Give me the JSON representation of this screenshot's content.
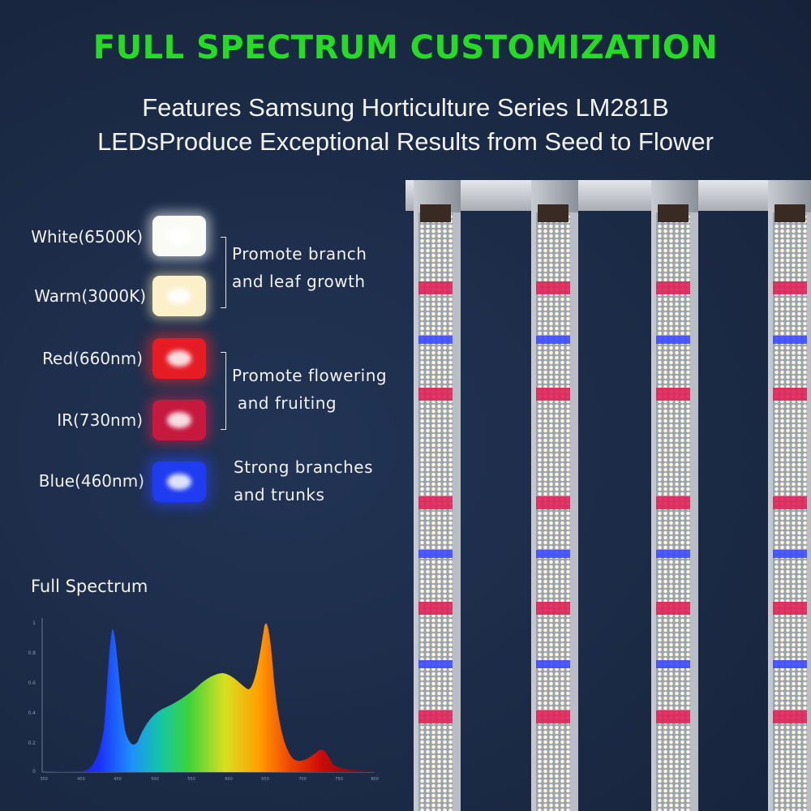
{
  "header": {
    "title": "FULL SPECTRUM CUSTOMIZATION",
    "subtitle_line1": "Features Samsung Horticulture Series LM281B",
    "subtitle_line2": "LEDsProduce Exceptional Results from Seed to Flower"
  },
  "led_types": [
    {
      "label": "White(6500K)",
      "color": "#fbfbf6"
    },
    {
      "label": "Warm(3000K)",
      "color": "#fbf0c9"
    },
    {
      "label": "Red(660nm)",
      "color": "#e61c25"
    },
    {
      "label": "IR(730nm)",
      "color": "#c7183e"
    },
    {
      "label": "Blue(460nm)",
      "color": "#1f3cf0"
    }
  ],
  "effects": [
    {
      "line1": "Promote branch",
      "line2": "and leaf growth"
    },
    {
      "line1": "Promote flowering",
      "line2": " and fruiting"
    },
    {
      "line1": "Strong branches",
      "line2": "and trunks"
    }
  ],
  "spectrum_chart": {
    "title": "Full Spectrum",
    "y_ticks": [
      "1",
      "0.8",
      "0.6",
      "0.4",
      "0.2",
      "0"
    ],
    "x_ticks": [
      "350",
      "400",
      "450",
      "500",
      "550",
      "600",
      "650",
      "700",
      "750",
      "800"
    ],
    "ylim": [
      0,
      1
    ],
    "xlim": [
      350,
      800
    ],
    "peaks": [
      {
        "nm": 450,
        "value": 0.95
      },
      {
        "nm": 530,
        "value": 0.43
      },
      {
        "nm": 605,
        "value": 0.66
      },
      {
        "nm": 660,
        "value": 1.0
      },
      {
        "nm": 730,
        "value": 0.14
      }
    ]
  },
  "colors": {
    "title_green": "#22dd22",
    "background": "#1b2a45"
  }
}
